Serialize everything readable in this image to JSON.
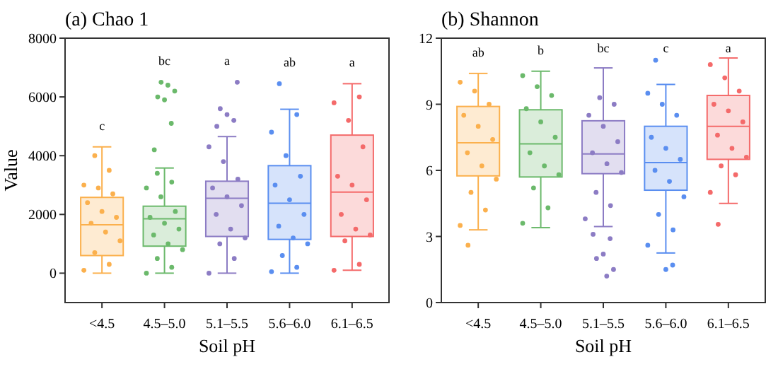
{
  "chart_data": [
    {
      "type": "box",
      "title": "(a) Chao 1",
      "xlabel": "Soil pH",
      "ylabel": "Value",
      "categories": [
        "<4.5",
        "4.5–5.0",
        "5.1–5.5",
        "5.6–6.0",
        "6.1–6.5"
      ],
      "colors": [
        "#fbb04d",
        "#6bb96b",
        "#8c7cc4",
        "#5a8ef0",
        "#f46a6a"
      ],
      "ylim": [
        -1000,
        8000
      ],
      "yticks": [
        0,
        2000,
        4000,
        6000,
        8000
      ],
      "boxes": [
        {
          "low": 0,
          "q1": 600,
          "median": 1650,
          "q3": 2580,
          "high": 4300
        },
        {
          "low": 0,
          "q1": 920,
          "median": 1850,
          "q3": 2280,
          "high": 3580,
          "outliers": [
            4200,
            5100,
            5900,
            6000,
            6200,
            6400,
            6500
          ]
        },
        {
          "low": 0,
          "q1": 1250,
          "median": 2550,
          "q3": 3130,
          "high": 4650,
          "outliers": [
            5000,
            5200,
            5400,
            5600,
            6500
          ]
        },
        {
          "low": 0,
          "q1": 1150,
          "median": 2380,
          "q3": 3660,
          "high": 5580,
          "outliers": [
            6450
          ]
        },
        {
          "low": 100,
          "q1": 1250,
          "median": 2760,
          "q3": 4700,
          "high": 6450
        }
      ],
      "series": [
        {
          "type": "scatter",
          "color": "#fbb04d",
          "x": [
            "<4.5",
            "<4.5",
            "<4.5",
            "<4.5",
            "<4.5",
            "<4.5",
            "<4.5",
            "<4.5",
            "<4.5",
            "<4.5",
            "<4.5",
            "<4.5",
            "<4.5",
            "<4.5"
          ],
          "values": [
            100,
            300,
            700,
            1100,
            1400,
            1700,
            1900,
            2100,
            2400,
            2700,
            2900,
            3000,
            3500,
            4000
          ]
        },
        {
          "type": "scatter",
          "color": "#6bb96b",
          "x": [
            "4.5–5.0",
            "4.5–5.0",
            "4.5–5.0",
            "4.5–5.0",
            "4.5–5.0",
            "4.5–5.0",
            "4.5–5.0",
            "4.5–5.0",
            "4.5–5.0",
            "4.5–5.0",
            "4.5–5.0",
            "4.5–5.0",
            "4.5–5.0",
            "4.5–5.0"
          ],
          "values": [
            0,
            200,
            500,
            800,
            1000,
            1300,
            1500,
            1700,
            1900,
            2100,
            2600,
            2900,
            3100,
            3400
          ]
        },
        {
          "type": "scatter",
          "color": "#8c7cc4",
          "x": [
            "5.1–5.5",
            "5.1–5.5",
            "5.1–5.5",
            "5.1–5.5",
            "5.1–5.5",
            "5.1–5.5",
            "5.1–5.5",
            "5.1–5.5",
            "5.1–5.5",
            "5.1–5.5",
            "5.1–5.5",
            "5.1–5.5"
          ],
          "values": [
            0,
            500,
            1000,
            1200,
            1500,
            2000,
            2300,
            2600,
            2900,
            3200,
            3800,
            4300
          ]
        },
        {
          "type": "scatter",
          "color": "#5a8ef0",
          "x": [
            "5.6–6.0",
            "5.6–6.0",
            "5.6–6.0",
            "5.6–6.0",
            "5.6–6.0",
            "5.6–6.0",
            "5.6–6.0",
            "5.6–6.0",
            "5.6–6.0",
            "5.6–6.0",
            "5.6–6.0",
            "5.6–6.0",
            "5.6–6.0"
          ],
          "values": [
            50,
            200,
            600,
            1000,
            1200,
            1600,
            2000,
            2500,
            3000,
            3300,
            4000,
            4800,
            5400
          ]
        },
        {
          "type": "scatter",
          "color": "#f46a6a",
          "x": [
            "6.1–6.5",
            "6.1–6.5",
            "6.1–6.5",
            "6.1–6.5",
            "6.1–6.5",
            "6.1–6.5",
            "6.1–6.5",
            "6.1–6.5",
            "6.1–6.5",
            "6.1–6.5",
            "6.1–6.5",
            "6.1–6.5",
            "6.1–6.5"
          ],
          "values": [
            100,
            300,
            1100,
            1300,
            1500,
            2000,
            2500,
            3000,
            3300,
            4300,
            5200,
            5800,
            6000
          ]
        }
      ],
      "annotations": [
        "c",
        "bc",
        "a",
        "ab",
        "a"
      ]
    },
    {
      "type": "box",
      "title": "(b) Shannon",
      "xlabel": "Soil pH",
      "categories": [
        "<4.5",
        "4.5–5.0",
        "5.1–5.5",
        "5.6–6.0",
        "6.1–6.5"
      ],
      "colors": [
        "#fbb04d",
        "#6bb96b",
        "#8c7cc4",
        "#5a8ef0",
        "#f46a6a"
      ],
      "ylim": [
        0,
        12
      ],
      "yticks": [
        0,
        3,
        6,
        9,
        12
      ],
      "boxes": [
        {
          "low": 3.3,
          "q1": 5.75,
          "median": 7.25,
          "q3": 8.9,
          "high": 10.4,
          "outliers": [
            2.6
          ]
        },
        {
          "low": 3.4,
          "q1": 5.7,
          "median": 7.2,
          "q3": 8.75,
          "high": 10.5
        },
        {
          "low": 3.45,
          "q1": 5.85,
          "median": 6.75,
          "q3": 8.25,
          "high": 10.65,
          "outliers": [
            3.1,
            2.9,
            2.2,
            2.0,
            1.5,
            1.2
          ]
        },
        {
          "low": 2.25,
          "q1": 5.1,
          "median": 6.35,
          "q3": 8.0,
          "high": 9.9,
          "outliers": [
            11.0,
            1.7,
            1.5
          ]
        },
        {
          "low": 4.5,
          "q1": 6.5,
          "median": 8.0,
          "q3": 9.4,
          "high": 11.1,
          "outliers": [
            3.55
          ]
        }
      ],
      "series": [
        {
          "type": "scatter",
          "color": "#fbb04d",
          "x": [
            "<4.5",
            "<4.5",
            "<4.5",
            "<4.5",
            "<4.5",
            "<4.5",
            "<4.5",
            "<4.5",
            "<4.5",
            "<4.5",
            "<4.5",
            "<4.5"
          ],
          "values": [
            3.5,
            4.2,
            5.0,
            5.6,
            6.2,
            6.8,
            7.4,
            8.0,
            8.5,
            9.0,
            9.6,
            10.0
          ]
        },
        {
          "type": "scatter",
          "color": "#6bb96b",
          "x": [
            "4.5–5.0",
            "4.5–5.0",
            "4.5–5.0",
            "4.5–5.0",
            "4.5–5.0",
            "4.5–5.0",
            "4.5–5.0",
            "4.5–5.0",
            "4.5–5.0",
            "4.5–5.0",
            "4.5–5.0",
            "4.5–5.0"
          ],
          "values": [
            3.6,
            4.3,
            5.2,
            5.8,
            6.2,
            6.8,
            7.5,
            8.2,
            8.8,
            9.4,
            9.8,
            10.3
          ]
        },
        {
          "type": "scatter",
          "color": "#8c7cc4",
          "x": [
            "5.1–5.5",
            "5.1–5.5",
            "5.1–5.5",
            "5.1–5.5",
            "5.1–5.5",
            "5.1–5.5",
            "5.1–5.5",
            "5.1–5.5",
            "5.1–5.5",
            "5.1–5.5",
            "5.1–5.5"
          ],
          "values": [
            3.8,
            4.4,
            5.0,
            5.9,
            6.3,
            6.8,
            7.3,
            8.0,
            8.5,
            9.0,
            9.3
          ]
        },
        {
          "type": "scatter",
          "color": "#5a8ef0",
          "x": [
            "5.6–6.0",
            "5.6–6.0",
            "5.6–6.0",
            "5.6–6.0",
            "5.6–6.0",
            "5.6–6.0",
            "5.6–6.0",
            "5.6–6.0",
            "5.6–6.0",
            "5.6–6.0",
            "5.6–6.0",
            "5.6–6.0"
          ],
          "values": [
            2.6,
            3.3,
            4.0,
            4.8,
            5.5,
            6.0,
            6.5,
            7.0,
            7.5,
            8.5,
            9.0,
            9.5
          ]
        },
        {
          "type": "scatter",
          "color": "#f46a6a",
          "x": [
            "6.1–6.5",
            "6.1–6.5",
            "6.1–6.5",
            "6.1–6.5",
            "6.1–6.5",
            "6.1–6.5",
            "6.1–6.5",
            "6.1–6.5",
            "6.1–6.5",
            "6.1–6.5",
            "6.1–6.5",
            "6.1–6.5"
          ],
          "values": [
            5.0,
            5.8,
            6.2,
            6.6,
            7.0,
            7.6,
            8.2,
            8.7,
            9.0,
            9.6,
            10.2,
            10.8
          ]
        }
      ],
      "annotations": [
        "ab",
        "b",
        "bc",
        "c",
        "a"
      ]
    }
  ]
}
